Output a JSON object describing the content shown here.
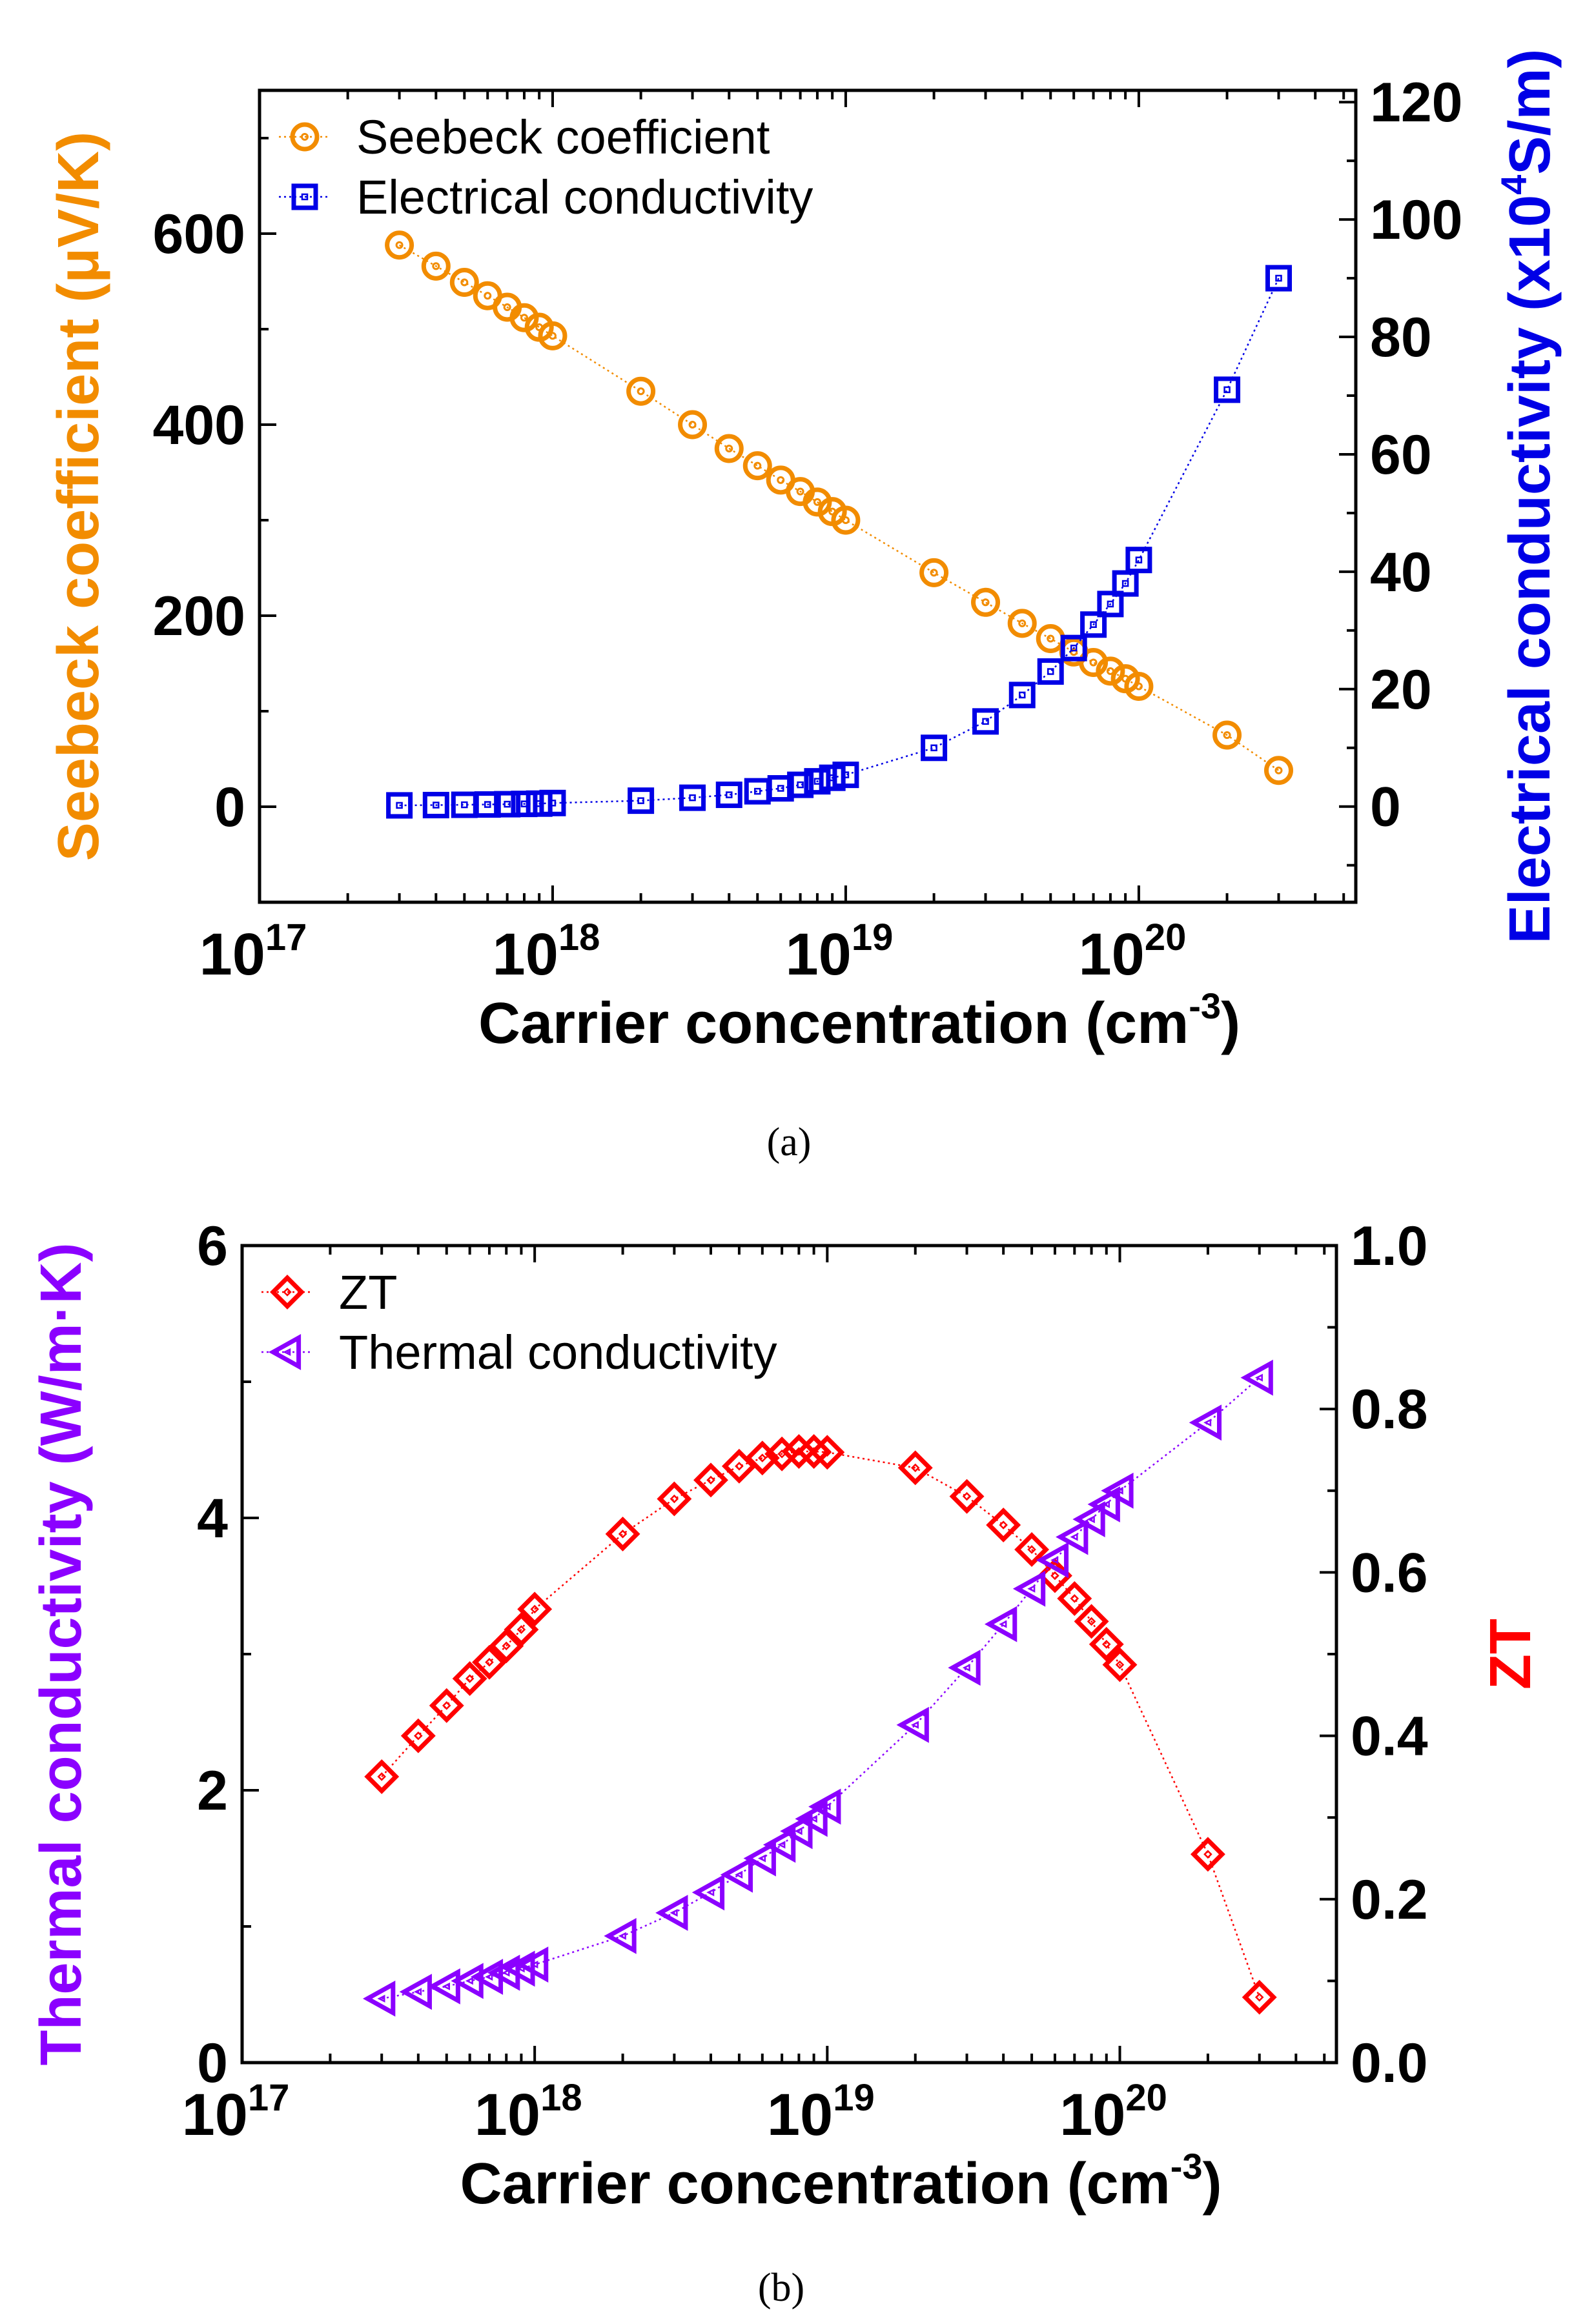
{
  "chart_data": [
    {
      "id": "a",
      "type": "scatter",
      "caption": "(a)",
      "x": [
        3e+17,
        4e+17,
        5e+17,
        6e+17,
        7e+17,
        8e+17,
        9e+17,
        1e+18,
        2e+18,
        3e+18,
        4e+18,
        5e+18,
        6e+18,
        7e+18,
        8e+18,
        9e+18,
        1e+19,
        2e+19,
        3e+19,
        4e+19,
        5e+19,
        6e+19,
        7e+19,
        8e+19,
        9e+19,
        1e+20,
        2e+20,
        3e+20
      ],
      "xlabel": "Carrier concentration (cm",
      "xlabel_sup": "-3",
      "xlabel_end": ")",
      "xscale": "log",
      "xlim": [
        1e+17,
        5.5e+20
      ],
      "x_ticks": [
        1e+17,
        1e+18,
        1e+19,
        1e+20
      ],
      "x_tick_labels": [
        {
          "base": "10",
          "exp": "17"
        },
        {
          "base": "10",
          "exp": "18"
        },
        {
          "base": "10",
          "exp": "19"
        },
        {
          "base": "10",
          "exp": "20"
        }
      ],
      "left_axis": {
        "label": "Seebeck coefficient (μV/K)",
        "color": "#f28c00",
        "lim": [
          -100,
          750
        ],
        "ticks": [
          0,
          200,
          400,
          600
        ],
        "tick_labels": [
          "0",
          "200",
          "400",
          "600"
        ]
      },
      "right_axis": {
        "label_prefix": "Electrical conductivity (x10",
        "label_sup": "4",
        "label_suffix": "S/m)",
        "color": "#0000e6",
        "lim": [
          -16.3,
          122
        ],
        "ticks": [
          0,
          20,
          40,
          60,
          80,
          100,
          120
        ],
        "tick_labels": [
          "0",
          "20",
          "40",
          "60",
          "80",
          "100",
          "120"
        ]
      },
      "series": [
        {
          "name": "Seebeck coefficient",
          "axis": "left",
          "marker": "circle",
          "color": "#f28c00",
          "values": [
            588,
            566,
            549,
            535,
            523,
            512,
            502,
            493,
            435,
            400,
            375,
            357,
            342,
            330,
            319,
            309,
            300,
            245,
            214,
            192,
            176,
            162,
            151,
            142,
            134,
            126,
            75,
            38
          ]
        },
        {
          "name": "Electrical conductivity",
          "axis": "right",
          "marker": "square",
          "color": "#0000e6",
          "values": [
            0.2,
            0.25,
            0.3,
            0.35,
            0.4,
            0.45,
            0.5,
            0.6,
            1.0,
            1.5,
            2.0,
            2.6,
            3.1,
            3.7,
            4.3,
            4.9,
            5.4,
            10.0,
            14.5,
            19.0,
            23.0,
            27.0,
            31.0,
            34.5,
            38.0,
            42.0,
            71.0,
            90.0
          ]
        }
      ]
    },
    {
      "id": "b",
      "type": "scatter",
      "caption": "(b)",
      "x": [
        3e+17,
        4e+17,
        5e+17,
        6e+17,
        7e+17,
        8e+17,
        9e+17,
        1e+18,
        2e+18,
        3e+18,
        4e+18,
        5e+18,
        6e+18,
        7e+18,
        8e+18,
        9e+18,
        1e+19,
        2e+19,
        3e+19,
        4e+19,
        5e+19,
        6e+19,
        7e+19,
        8e+19,
        9e+19,
        1e+20,
        2e+20,
        3e+20
      ],
      "xlabel": "Carrier concentration (cm",
      "xlabel_sup": "-3",
      "xlabel_end": ")",
      "xscale": "log",
      "xlim": [
        1e+17,
        5.5e+20
      ],
      "x_ticks": [
        1e+17,
        1e+18,
        1e+19,
        1e+20
      ],
      "x_tick_labels": [
        {
          "base": "10",
          "exp": "17"
        },
        {
          "base": "10",
          "exp": "18"
        },
        {
          "base": "10",
          "exp": "19"
        },
        {
          "base": "10",
          "exp": "20"
        }
      ],
      "left_axis": {
        "label": "Thermal conductivity (W/m·K)",
        "color": "#8b00ff",
        "lim": [
          0,
          6
        ],
        "ticks": [
          0,
          2,
          4,
          6
        ],
        "tick_labels": [
          "0",
          "2",
          "4",
          "6"
        ]
      },
      "right_axis": {
        "label": "ZT",
        "color": "#ff0000",
        "lim": [
          0,
          1.0
        ],
        "ticks": [
          0,
          0.2,
          0.4,
          0.6,
          0.8,
          1.0
        ],
        "tick_labels": [
          "0.0",
          "0.2",
          "0.4",
          "0.6",
          "0.8",
          "1.0"
        ]
      },
      "series": [
        {
          "name": "ZT",
          "axis": "right",
          "marker": "diamond",
          "color": "#ff0000",
          "values": [
            0.35,
            0.4,
            0.437,
            0.47,
            0.49,
            0.51,
            0.53,
            0.555,
            0.647,
            0.69,
            0.713,
            0.73,
            0.74,
            0.745,
            0.748,
            0.748,
            0.747,
            0.728,
            0.693,
            0.658,
            0.628,
            0.596,
            0.568,
            0.54,
            0.512,
            0.487,
            0.255,
            0.08
          ]
        },
        {
          "name": "Thermal conductivity",
          "axis": "left",
          "marker": "triangle-left",
          "color": "#8b00ff",
          "values": [
            0.47,
            0.52,
            0.56,
            0.6,
            0.63,
            0.66,
            0.69,
            0.72,
            0.93,
            1.1,
            1.25,
            1.38,
            1.5,
            1.6,
            1.7,
            1.79,
            1.88,
            2.48,
            2.9,
            3.22,
            3.48,
            3.69,
            3.86,
            3.99,
            4.1,
            4.2,
            4.7,
            5.03
          ]
        }
      ]
    }
  ]
}
